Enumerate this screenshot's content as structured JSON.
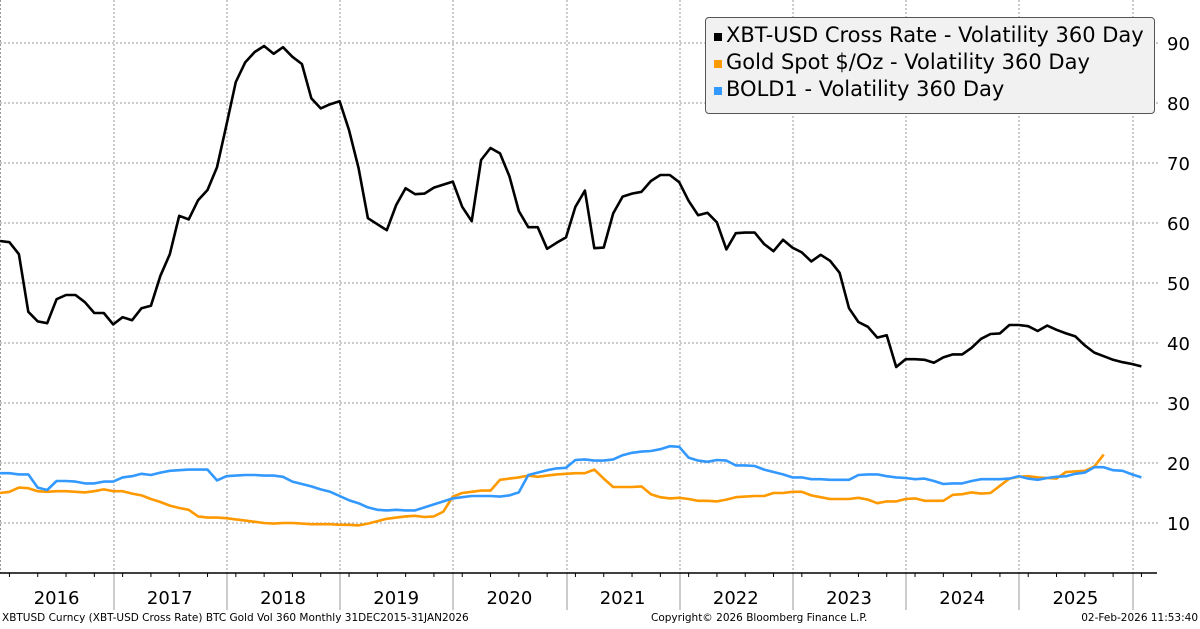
{
  "chart_data": {
    "type": "line",
    "title": "",
    "xlabel": "",
    "ylabel": "",
    "ylim": [
      0,
      97
    ],
    "yticks": [
      10,
      20,
      30,
      40,
      50,
      60,
      70,
      80,
      90
    ],
    "ytick_labels": [
      "10",
      "20",
      "30",
      "40",
      "50",
      "60",
      "70",
      "80",
      "90"
    ],
    "y_axis_side": "right",
    "grid": true,
    "legend_position": "top-right",
    "x_start": "2015-12",
    "x_end": "2026-01",
    "frequency": "monthly",
    "year_labels": [
      "2016",
      "2017",
      "2018",
      "2019",
      "2020",
      "2021",
      "2022",
      "2023",
      "2024",
      "2025"
    ],
    "series": [
      {
        "name": "XBT-USD Cross Rate - Volatility 360 Day",
        "color": "#000000",
        "values": [
          57.0,
          56.8,
          54.8,
          45.2,
          43.6,
          43.3,
          47.3,
          48.0,
          48.0,
          46.8,
          45.0,
          45.0,
          43.1,
          44.3,
          43.8,
          45.8,
          46.2,
          51.2,
          54.8,
          61.2,
          60.6,
          63.8,
          65.5,
          69.3,
          76.3,
          83.5,
          86.8,
          88.5,
          89.5,
          88.2,
          89.3,
          87.7,
          86.5,
          80.8,
          79.1,
          79.8,
          80.3,
          75.5,
          69.2,
          60.8,
          59.8,
          58.8,
          63.0,
          65.8,
          64.8,
          64.9,
          65.9,
          66.4,
          66.9,
          62.7,
          60.3,
          70.5,
          72.5,
          71.6,
          67.8,
          62.0,
          59.3,
          59.3,
          55.7,
          56.7,
          57.6,
          62.7,
          65.4,
          55.8,
          55.9,
          61.6,
          64.4,
          64.9,
          65.2,
          67.0,
          68.0,
          68.0,
          66.8,
          63.7,
          61.3,
          61.7,
          60.1,
          55.6,
          58.3,
          58.4,
          58.4,
          56.5,
          55.3,
          57.2,
          55.9,
          55.1,
          53.6,
          54.7,
          53.7,
          51.7,
          45.8,
          43.5,
          42.7,
          40.9,
          41.3,
          36.0,
          37.3,
          37.3,
          37.2,
          36.7,
          37.6,
          38.1,
          38.1,
          39.2,
          40.7,
          41.5,
          41.6,
          43.0,
          43.0,
          42.8,
          42.0,
          42.9,
          42.2,
          41.6,
          41.1,
          39.6,
          38.4,
          37.8,
          37.2,
          36.8,
          36.5,
          36.1
        ]
      },
      {
        "name": "Gold Spot $/Oz - Volatility 360 Day",
        "color": "#ff9900",
        "values": [
          15.0,
          15.2,
          15.9,
          15.8,
          15.3,
          15.2,
          15.3,
          15.3,
          15.2,
          15.1,
          15.3,
          15.6,
          15.3,
          15.3,
          14.9,
          14.6,
          14.0,
          13.5,
          12.9,
          12.5,
          12.2,
          11.1,
          10.9,
          10.9,
          10.8,
          10.6,
          10.4,
          10.2,
          10.0,
          9.9,
          10.0,
          10.0,
          9.9,
          9.8,
          9.8,
          9.8,
          9.7,
          9.7,
          9.6,
          9.9,
          10.3,
          10.7,
          10.9,
          11.1,
          11.2,
          11.0,
          11.1,
          11.9,
          14.4,
          15.0,
          15.2,
          15.4,
          15.4,
          17.2,
          17.4,
          17.6,
          17.9,
          17.7,
          17.9,
          18.1,
          18.2,
          18.3,
          18.3,
          18.9,
          17.4,
          16.0,
          16.0,
          16.0,
          16.1,
          14.8,
          14.3,
          14.1,
          14.2,
          14.0,
          13.7,
          13.7,
          13.6,
          13.9,
          14.3,
          14.4,
          14.5,
          14.5,
          15.0,
          15.0,
          15.2,
          15.2,
          14.6,
          14.3,
          14.0,
          14.0,
          14.0,
          14.2,
          13.9,
          13.3,
          13.6,
          13.6,
          14.0,
          14.1,
          13.7,
          13.7,
          13.7,
          14.7,
          14.8,
          15.1,
          14.9,
          15.0,
          16.2,
          17.4,
          17.7,
          17.8,
          17.6,
          17.5,
          17.4,
          18.5,
          18.6,
          18.7,
          19.4,
          21.4
        ]
      },
      {
        "name": "BOLD1 - Volatility 360 Day",
        "color": "#3399ff",
        "values": [
          18.3,
          18.3,
          18.1,
          18.1,
          15.9,
          15.5,
          17.0,
          17.0,
          16.9,
          16.6,
          16.6,
          16.9,
          16.9,
          17.6,
          17.8,
          18.2,
          18.0,
          18.4,
          18.7,
          18.8,
          18.9,
          18.9,
          18.9,
          17.1,
          17.8,
          17.9,
          18.0,
          18.0,
          17.9,
          17.9,
          17.7,
          16.9,
          16.5,
          16.1,
          15.6,
          15.2,
          14.5,
          13.8,
          13.3,
          12.6,
          12.2,
          12.1,
          12.2,
          12.1,
          12.1,
          12.6,
          13.1,
          13.6,
          14.1,
          14.3,
          14.5,
          14.5,
          14.5,
          14.4,
          14.6,
          15.1,
          18.0,
          18.4,
          18.8,
          19.1,
          19.2,
          20.5,
          20.6,
          20.4,
          20.4,
          20.6,
          21.3,
          21.7,
          21.9,
          22.0,
          22.3,
          22.8,
          22.7,
          20.9,
          20.4,
          20.2,
          20.5,
          20.4,
          19.6,
          19.6,
          19.5,
          18.9,
          18.5,
          18.1,
          17.6,
          17.6,
          17.3,
          17.3,
          17.2,
          17.2,
          17.2,
          18.0,
          18.1,
          18.1,
          17.8,
          17.6,
          17.5,
          17.3,
          17.4,
          17.0,
          16.5,
          16.6,
          16.6,
          17.0,
          17.3,
          17.3,
          17.3,
          17.4,
          17.8,
          17.4,
          17.2,
          17.5,
          17.7,
          17.8,
          18.2,
          18.4,
          19.3,
          19.3,
          18.8,
          18.7,
          18.1,
          17.6
        ]
      }
    ]
  },
  "footer": {
    "source": "XBTUSD Curncy (XBT-USD Cross Rate) BTC Gold Vol 360 Monthly 31DEC2015-31JAN2026",
    "copyright": "Copyright© 2026 Bloomberg Finance L.P.",
    "timestamp": "02-Feb-2026 11:53:40"
  }
}
